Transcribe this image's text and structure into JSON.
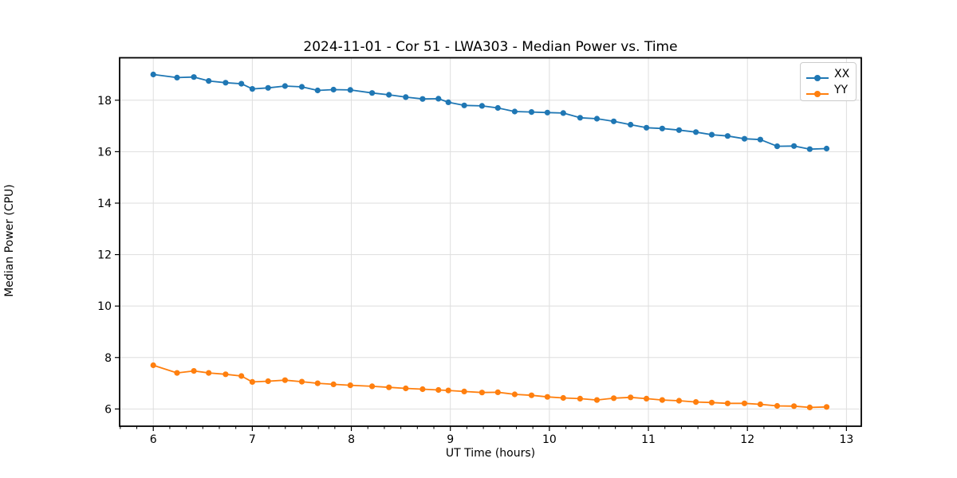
{
  "window": {
    "background": "#ffffff"
  },
  "chart_data": {
    "type": "line",
    "title": "2024-11-01 - Cor 51 - LWA303 - Median Power vs. Time",
    "xlabel": "UT Time (hours)",
    "ylabel": "Median Power (CPU)",
    "xlim": [
      5.66,
      13.15
    ],
    "ylim": [
      5.33,
      19.65
    ],
    "xticks": [
      6,
      7,
      8,
      9,
      10,
      11,
      12,
      13
    ],
    "yticks": [
      6,
      8,
      10,
      12,
      14,
      16,
      18
    ],
    "x_minor_tick_step": 0.16666667,
    "grid": true,
    "grid_color": "#dedede",
    "spine_color": "#000000",
    "tick_color": "#000000",
    "marker": "circle",
    "marker_size": 3.6,
    "line_width": 1.8,
    "legend_position": "upper right",
    "x": [
      6.0,
      6.24,
      6.41,
      6.56,
      6.73,
      6.89,
      7.0,
      7.16,
      7.33,
      7.5,
      7.66,
      7.82,
      7.99,
      8.21,
      8.38,
      8.55,
      8.72,
      8.88,
      8.98,
      9.14,
      9.32,
      9.48,
      9.65,
      9.82,
      9.98,
      10.14,
      10.31,
      10.48,
      10.65,
      10.82,
      10.98,
      11.14,
      11.31,
      11.48,
      11.64,
      11.8,
      11.97,
      12.13,
      12.3,
      12.47,
      12.63,
      12.8
    ],
    "series": [
      {
        "name": "XX",
        "color": "#1f77b4",
        "values": [
          19.0,
          18.88,
          18.9,
          18.75,
          18.68,
          18.64,
          18.44,
          18.48,
          18.55,
          18.52,
          18.38,
          18.41,
          18.4,
          18.28,
          18.21,
          18.12,
          18.05,
          18.06,
          17.92,
          17.8,
          17.78,
          17.7,
          17.56,
          17.54,
          17.52,
          17.5,
          17.32,
          17.28,
          17.18,
          17.05,
          16.93,
          16.9,
          16.84,
          16.76,
          16.66,
          16.61,
          16.5,
          16.47,
          16.21,
          16.22,
          16.1,
          16.12
        ]
      },
      {
        "name": "YY",
        "color": "#ff7f0e",
        "values": [
          7.7,
          7.4,
          7.48,
          7.4,
          7.35,
          7.28,
          7.05,
          7.08,
          7.12,
          7.06,
          7.0,
          6.96,
          6.92,
          6.88,
          6.84,
          6.8,
          6.77,
          6.74,
          6.72,
          6.68,
          6.64,
          6.65,
          6.57,
          6.53,
          6.47,
          6.43,
          6.4,
          6.35,
          6.42,
          6.45,
          6.4,
          6.35,
          6.32,
          6.27,
          6.25,
          6.22,
          6.22,
          6.18,
          6.12,
          6.11,
          6.06,
          6.08
        ]
      }
    ]
  }
}
